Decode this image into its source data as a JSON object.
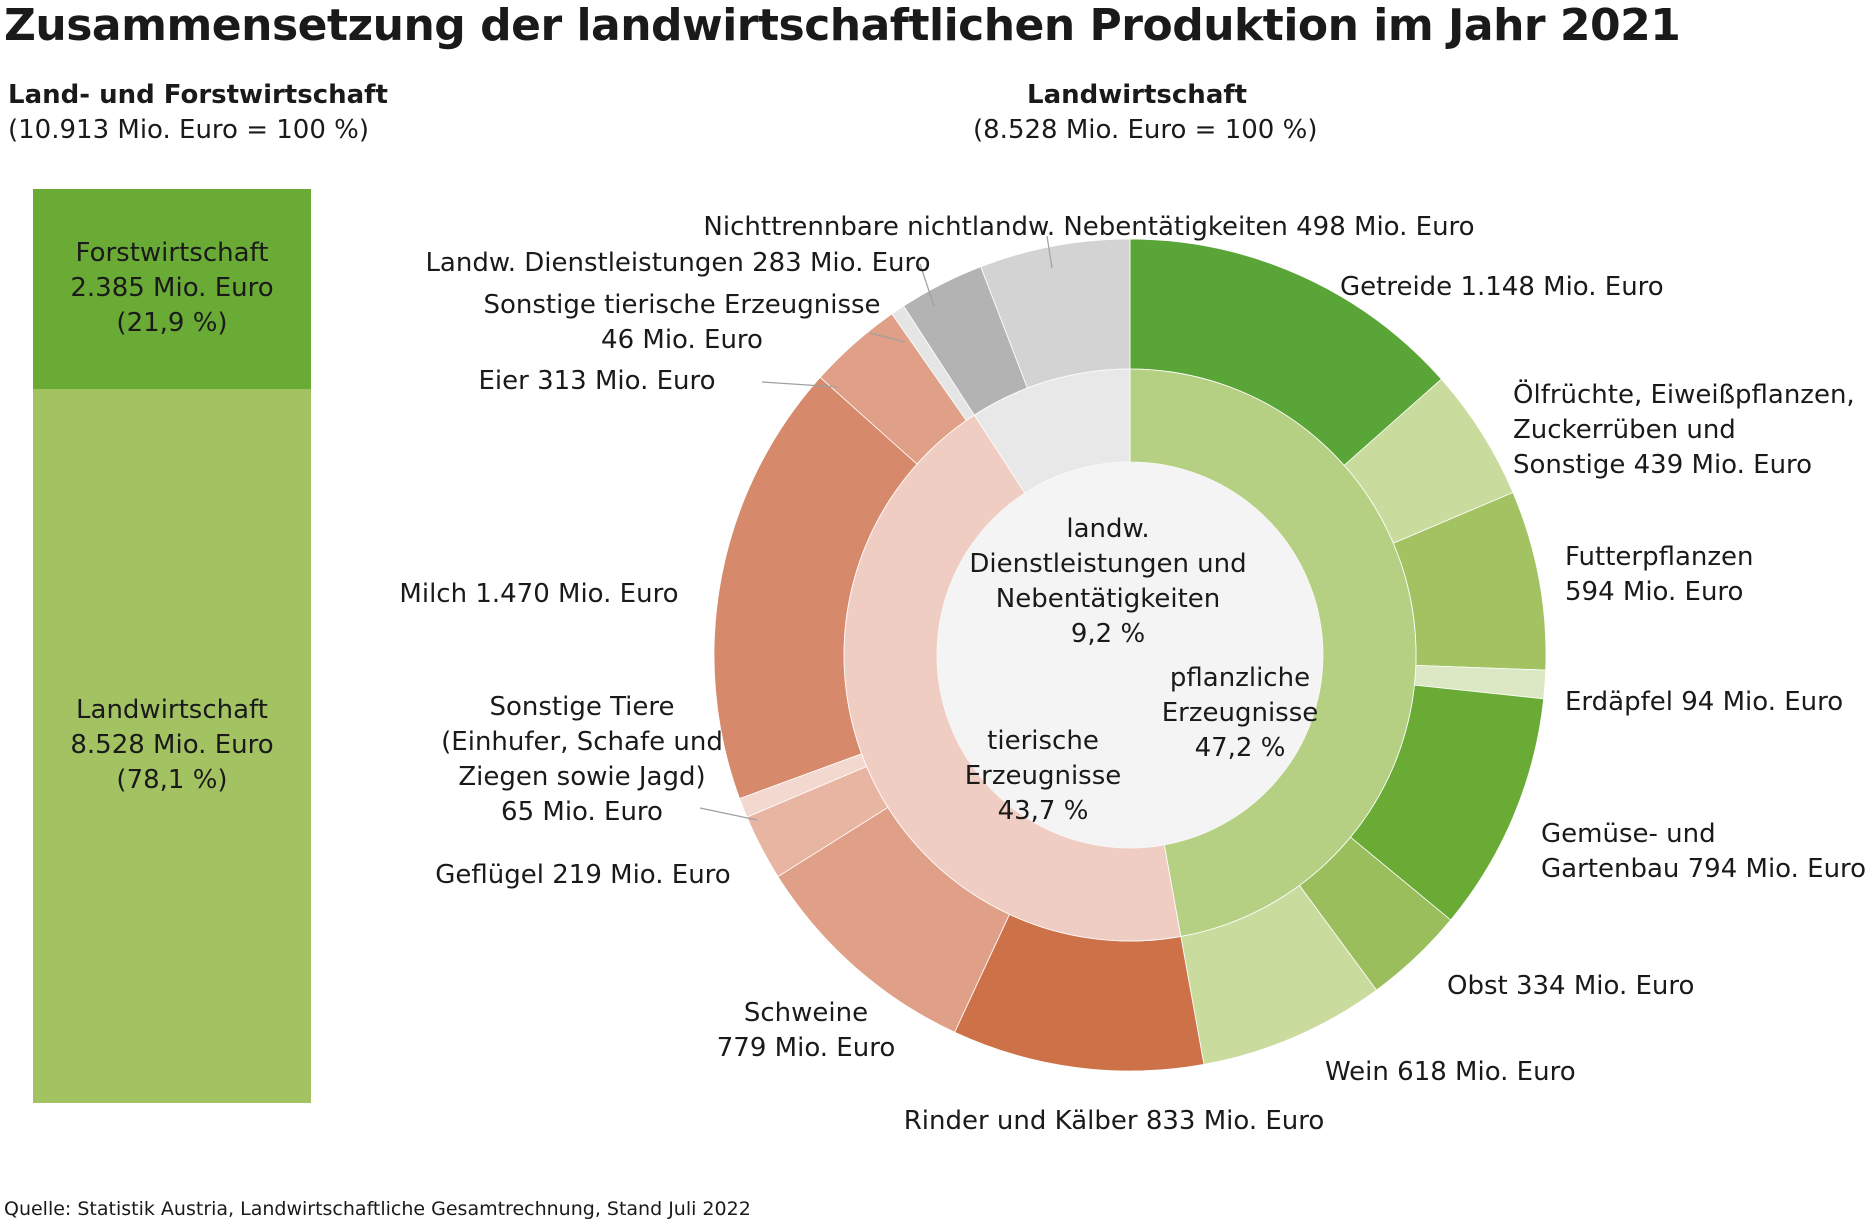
{
  "title": "Zusammensetzung der landwirtschaftlichen Produktion im Jahr 2021",
  "left_panel": {
    "heading": "Land- und Forstwirtschaft",
    "total": "(10.913 Mio. Euro = 100 %)",
    "forst": {
      "name": "Forstwirtschaft",
      "value": "2.385 Mio. Euro",
      "pct": "(21,9 %)"
    },
    "land": {
      "name": "Landwirtschaft",
      "value": "8.528 Mio. Euro",
      "pct": "(78,1 %)"
    }
  },
  "right_panel": {
    "heading": "Landwirtschaft",
    "total": "(8.528 Mio. Euro = 100 %)"
  },
  "source": "Quelle: Statistik Austria, Landwirtschaftliche Gesamtrechnung, Stand Juli 2022",
  "colors": {
    "forst": "#6aab36",
    "land": "#a3c363",
    "center": "#f4f4f4",
    "inner_plant": "#b5d083",
    "inner_animal": "#f0cdc3",
    "inner_service": "#e8e8e8"
  },
  "chart_data": [
    {
      "type": "bar",
      "stacked": true,
      "categories": [
        "Land- und Forstwirtschaft"
      ],
      "series": [
        {
          "name": "Landwirtschaft",
          "values": [
            8528
          ]
        },
        {
          "name": "Forstwirtschaft",
          "values": [
            2385
          ]
        }
      ],
      "unit": "Mio. Euro"
    },
    {
      "type": "pie",
      "donut": true,
      "total": 8528,
      "unit": "Mio. Euro",
      "inner": [
        {
          "name": "pflanzliche Erzeugnisse",
          "pct": 47.2
        },
        {
          "name": "tierische Erzeugnisse",
          "pct": 43.7
        },
        {
          "name": "landw. Dienstleistungen und Nebentätigkeiten",
          "pct": 9.2
        }
      ],
      "outer": [
        {
          "name": "Getreide",
          "value": 1148,
          "color": "#5aa537"
        },
        {
          "name": "Ölfrüchte, Eiweißpflanzen, Zuckerrüben und Sonstige",
          "value": 439,
          "color": "#c9db9d"
        },
        {
          "name": "Futterpflanzen",
          "value": 594,
          "color": "#a3c363"
        },
        {
          "name": "Erdäpfel",
          "value": 94,
          "color": "#dbe8c3"
        },
        {
          "name": "Gemüse- und Gartenbau",
          "value": 794,
          "color": "#6aab36"
        },
        {
          "name": "Obst",
          "value": 334,
          "color": "#9bbe5d"
        },
        {
          "name": "Wein",
          "value": 618,
          "color": "#c9db9d"
        },
        {
          "name": "Rinder und Kälber",
          "value": 833,
          "color": "#cd7248"
        },
        {
          "name": "Schweine",
          "value": 779,
          "color": "#e0a088"
        },
        {
          "name": "Geflügel",
          "value": 219,
          "color": "#e8b5a3"
        },
        {
          "name": "Sonstige Tiere (Einhufer, Schafe und Ziegen sowie Jagd)",
          "value": 65,
          "color": "#f3d8cf"
        },
        {
          "name": "Milch",
          "value": 1470,
          "color": "#d68a6b"
        },
        {
          "name": "Eier",
          "value": 313,
          "color": "#e0a088"
        },
        {
          "name": "Sonstige tierische Erzeugnisse",
          "value": 46,
          "color": "#e5e5e5"
        },
        {
          "name": "Landw. Dienstleistungen",
          "value": 283,
          "color": "#b3b3b3"
        },
        {
          "name": "Nichttrennbare nichtlandw. Nebentätigkeiten",
          "value": 498,
          "color": "#d3d3d3"
        }
      ]
    }
  ],
  "labels": {
    "getreide": [
      "Getreide  1.148 Mio. Euro"
    ],
    "oel": [
      "Ölfrüchte, Eiweißpflanzen,",
      "Zuckerrüben und",
      "Sonstige  439 Mio. Euro"
    ],
    "futter": [
      "Futterpflanzen",
      "594 Mio. Euro"
    ],
    "erdaepfel": [
      "Erdäpfel 94 Mio. Euro"
    ],
    "gemuese": [
      "Gemüse- und",
      "Gartenbau  794 Mio. Euro"
    ],
    "obst": [
      "Obst 334 Mio. Euro"
    ],
    "wein": [
      "Wein 618 Mio. Euro"
    ],
    "rinder": [
      "Rinder und Kälber  833 Mio. Euro"
    ],
    "schweine": [
      "Schweine",
      "779 Mio. Euro"
    ],
    "gefluegel": [
      "Geflügel  219 Mio. Euro"
    ],
    "sonstige_tiere": [
      "Sonstige Tiere",
      "(Einhufer, Schafe und",
      "Ziegen sowie Jagd)",
      "65 Mio. Euro"
    ],
    "milch": [
      "Milch  1.470 Mio. Euro"
    ],
    "eier": [
      "Eier  313 Mio. Euro"
    ],
    "sonstige_tier_erz": [
      "Sonstige tierische Erzeugnisse",
      "46 Mio. Euro"
    ],
    "dienst": [
      "Landw. Dienstleistungen 283 Mio. Euro"
    ],
    "neben": [
      "Nichttrennbare nichtlandw. Nebentätigkeiten 498 Mio. Euro"
    ],
    "inner_service": [
      "landw.",
      "Dienstleistungen und",
      "Nebentätigkeiten",
      "9,2 %"
    ],
    "inner_plant": [
      "pflanzliche",
      "Erzeugnisse",
      "47,2 %"
    ],
    "inner_animal": [
      "tierische",
      "Erzeugnisse",
      "43,7 %"
    ]
  }
}
